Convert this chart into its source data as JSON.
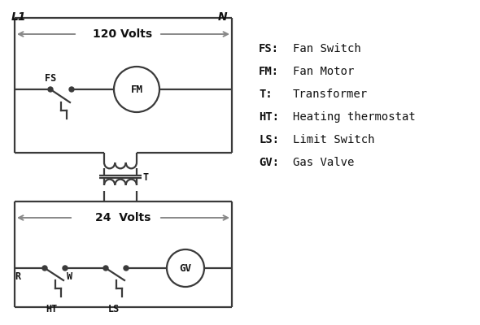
{
  "bg_color": "#ffffff",
  "line_color": "#3a3a3a",
  "arrow_color": "#888888",
  "text_color": "#111111",
  "legend_items": [
    [
      "FS:",
      "Fan Switch"
    ],
    [
      "FM:",
      "Fan Motor"
    ],
    [
      "T:",
      "Transformer"
    ],
    [
      "HT:",
      "Heating thermostat"
    ],
    [
      "LS:",
      "Limit Switch"
    ],
    [
      "GV:",
      "Gas Valve"
    ]
  ],
  "label_L1": "L1",
  "label_N": "N",
  "label_120V": "120 Volts",
  "label_24V": "24  Volts",
  "label_T": "T",
  "label_R": "R",
  "label_W": "W",
  "label_FS": "FS",
  "label_FM": "FM",
  "label_HT": "HT",
  "label_LS": "LS",
  "label_GV": "GV"
}
